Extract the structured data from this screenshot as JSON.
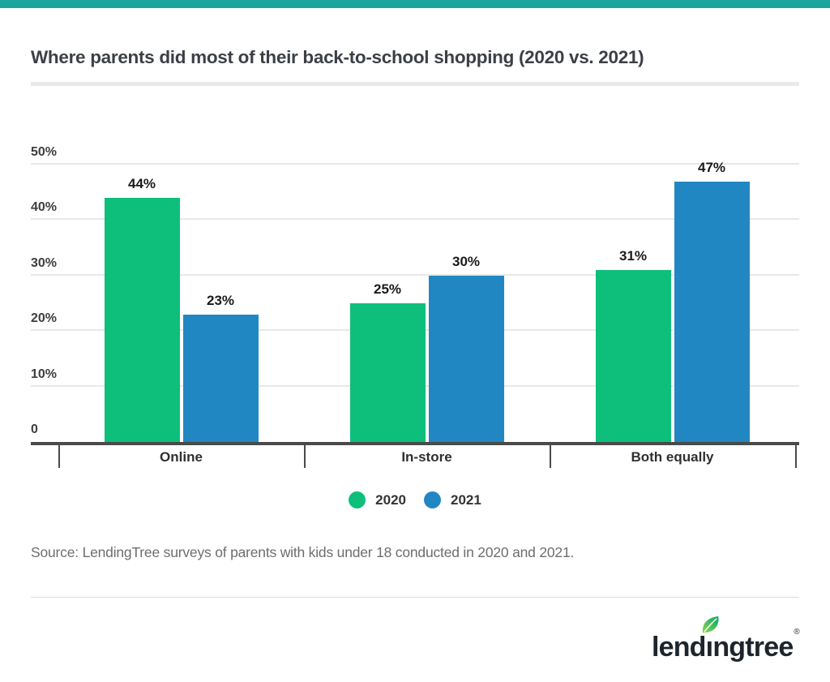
{
  "page": {
    "title": "Where parents did most of their back-to-school shopping (2020 vs. 2021)",
    "source_note": "Source: LendingTree surveys of parents with kids under 18 conducted in 2020 and 2021.",
    "accent_bar_color": "#1aa59d",
    "background_color": "#ffffff"
  },
  "chart_data": {
    "type": "bar",
    "title": "Where parents did most of their back-to-school shopping (2020 vs. 2021)",
    "categories": [
      "Online",
      "In-store",
      "Both equally"
    ],
    "series": [
      {
        "name": "2020",
        "color": "#0dbf7a",
        "values": [
          44,
          25,
          31
        ]
      },
      {
        "name": "2021",
        "color": "#2187c2",
        "values": [
          23,
          30,
          47
        ]
      }
    ],
    "value_labels": [
      [
        "44%",
        "25%",
        "31%"
      ],
      [
        "23%",
        "30%",
        "47%"
      ]
    ],
    "value_suffix": "%",
    "xlabel": "",
    "ylabel": "",
    "ylim": [
      0,
      50
    ],
    "yticks": [
      0,
      10,
      20,
      30,
      40,
      50
    ],
    "ytick_labels": [
      "0",
      "10%",
      "20%",
      "30%",
      "40%",
      "50%"
    ],
    "grid": true,
    "legend_position": "bottom",
    "axis_color": "#4a4a4a",
    "grid_color": "#e8e8e8"
  },
  "legend": {
    "items": [
      {
        "label": "2020",
        "color": "#0dbf7a"
      },
      {
        "label": "2021",
        "color": "#2187c2"
      }
    ]
  },
  "logo": {
    "brand": "lendingtree",
    "text_before_leaf": "lend",
    "dotless_i": "ı",
    "text_after_leaf": "ngtree",
    "registered_mark": "®",
    "text_color": "#1d252c",
    "leaf_color_light": "#8ed64b",
    "leaf_color_dark": "#00a86b"
  }
}
